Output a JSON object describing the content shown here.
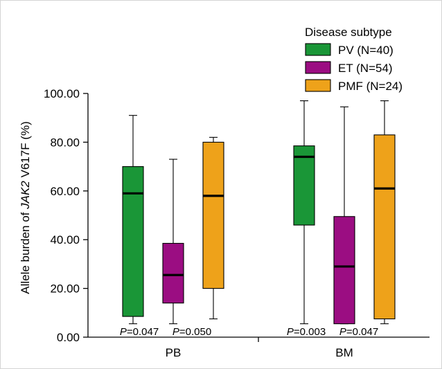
{
  "chart_data": {
    "type": "boxplot",
    "ylabel_prefix": "Allele burden of ",
    "ylabel_gene": "JAK2",
    "ylabel_suffix": " V617F (%)",
    "ylim": [
      0,
      100
    ],
    "yticks": [
      0,
      20,
      40,
      60,
      80,
      100
    ],
    "ytick_labels": [
      "0.00",
      "20.00",
      "40.00",
      "60.00",
      "80.00",
      "100.00"
    ],
    "categories": [
      "PB",
      "BM"
    ],
    "legend": {
      "title": "Disease subtype",
      "position": "top-right",
      "entries": [
        {
          "label": "PV (N=40)",
          "color": "#1a9637"
        },
        {
          "label": "ET (N=54)",
          "color": "#9b0d82"
        },
        {
          "label": "PMF (N=24)",
          "color": "#eea21a"
        }
      ]
    },
    "series": [
      {
        "name": "PV (N=40)",
        "color": "#1a9637",
        "boxes": [
          {
            "category": "PB",
            "min": 5.5,
            "q1": 8.5,
            "median": 59,
            "q3": 70,
            "max": 91
          },
          {
            "category": "BM",
            "min": 5.5,
            "q1": 46,
            "median": 74,
            "q3": 78.5,
            "max": 97
          }
        ]
      },
      {
        "name": "ET (N=54)",
        "color": "#9b0d82",
        "boxes": [
          {
            "category": "PB",
            "min": 5.5,
            "q1": 14,
            "median": 25.5,
            "q3": 38.5,
            "max": 73
          },
          {
            "category": "BM",
            "min": 5.5,
            "q1": 5.5,
            "median": 29,
            "q3": 49.5,
            "max": 94.5
          }
        ]
      },
      {
        "name": "PMF (N=24)",
        "color": "#eea21a",
        "boxes": [
          {
            "category": "PB",
            "min": 7.5,
            "q1": 20,
            "median": 58,
            "q3": 80,
            "max": 82
          },
          {
            "category": "BM",
            "min": 5.5,
            "q1": 7.5,
            "median": 61,
            "q3": 83,
            "max": 97
          }
        ]
      }
    ],
    "annotations": [
      {
        "category": "PB",
        "p_label": "P",
        "p_value": "=0.047",
        "between": "PV-ET"
      },
      {
        "category": "PB",
        "p_label": "P",
        "p_value": "=0.050",
        "between": "ET-PMF"
      },
      {
        "category": "BM",
        "p_label": "P",
        "p_value": "=0.003",
        "between": "PV-ET"
      },
      {
        "category": "BM",
        "p_label": "P",
        "p_value": "=0.047",
        "between": "ET-PMF"
      }
    ],
    "grid": false
  }
}
